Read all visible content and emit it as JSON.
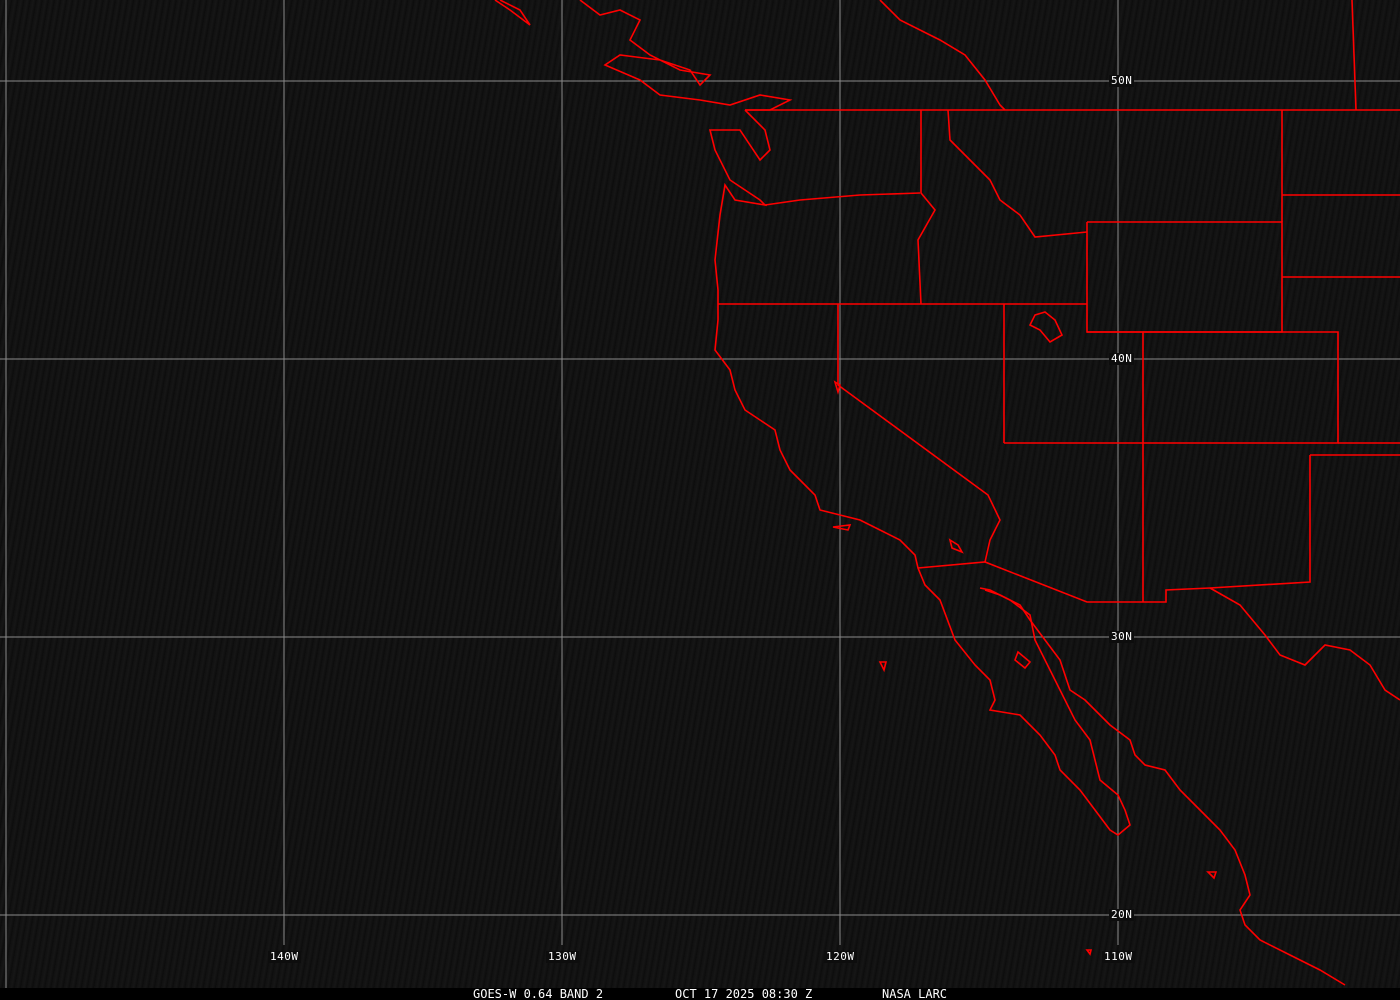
{
  "caption": {
    "product": "GOES-W 0.64 BAND 2",
    "datetime": "OCT 17 2025 08:30 Z",
    "source": "NASA LARC"
  },
  "grid": {
    "latitudes": [
      "50N",
      "40N",
      "30N",
      "20N"
    ],
    "longitudes": [
      "140W",
      "130W",
      "120W",
      "110W"
    ]
  },
  "colors": {
    "boundaries": "#ff0000",
    "grid": "#8a8a8a",
    "background": "#111111"
  }
}
